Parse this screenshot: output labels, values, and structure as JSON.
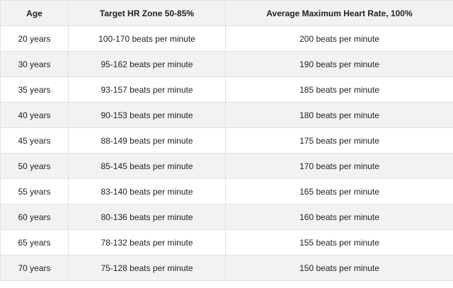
{
  "table": {
    "header": [
      "Age",
      "Target HR Zone 50-85%",
      "Average Maximum Heart Rate, 100%"
    ],
    "rows": [
      [
        "20 years",
        "100-170 beats per minute",
        "200 beats per minute"
      ],
      [
        "30 years",
        "95-162 beats per minute",
        "190 beats per minute"
      ],
      [
        "35 years",
        "93-157 beats per minute",
        "185 beats per minute"
      ],
      [
        "40 years",
        "90-153 beats per minute",
        "180 beats per minute"
      ],
      [
        "45 years",
        "88-149 beats per minute",
        "175 beats per minute"
      ],
      [
        "50 years",
        "85-145 beats per minute",
        "170 beats per minute"
      ],
      [
        "55 years",
        "83-140 beats per minute",
        "165 beats per minute"
      ],
      [
        "60 years",
        "80-136 beats per minute",
        "160 beats per minute"
      ],
      [
        "65 years",
        "78-132 beats per minute",
        "155 beats per minute"
      ],
      [
        "70 years",
        "75-128 beats per minute",
        "150 beats per minute"
      ]
    ]
  }
}
